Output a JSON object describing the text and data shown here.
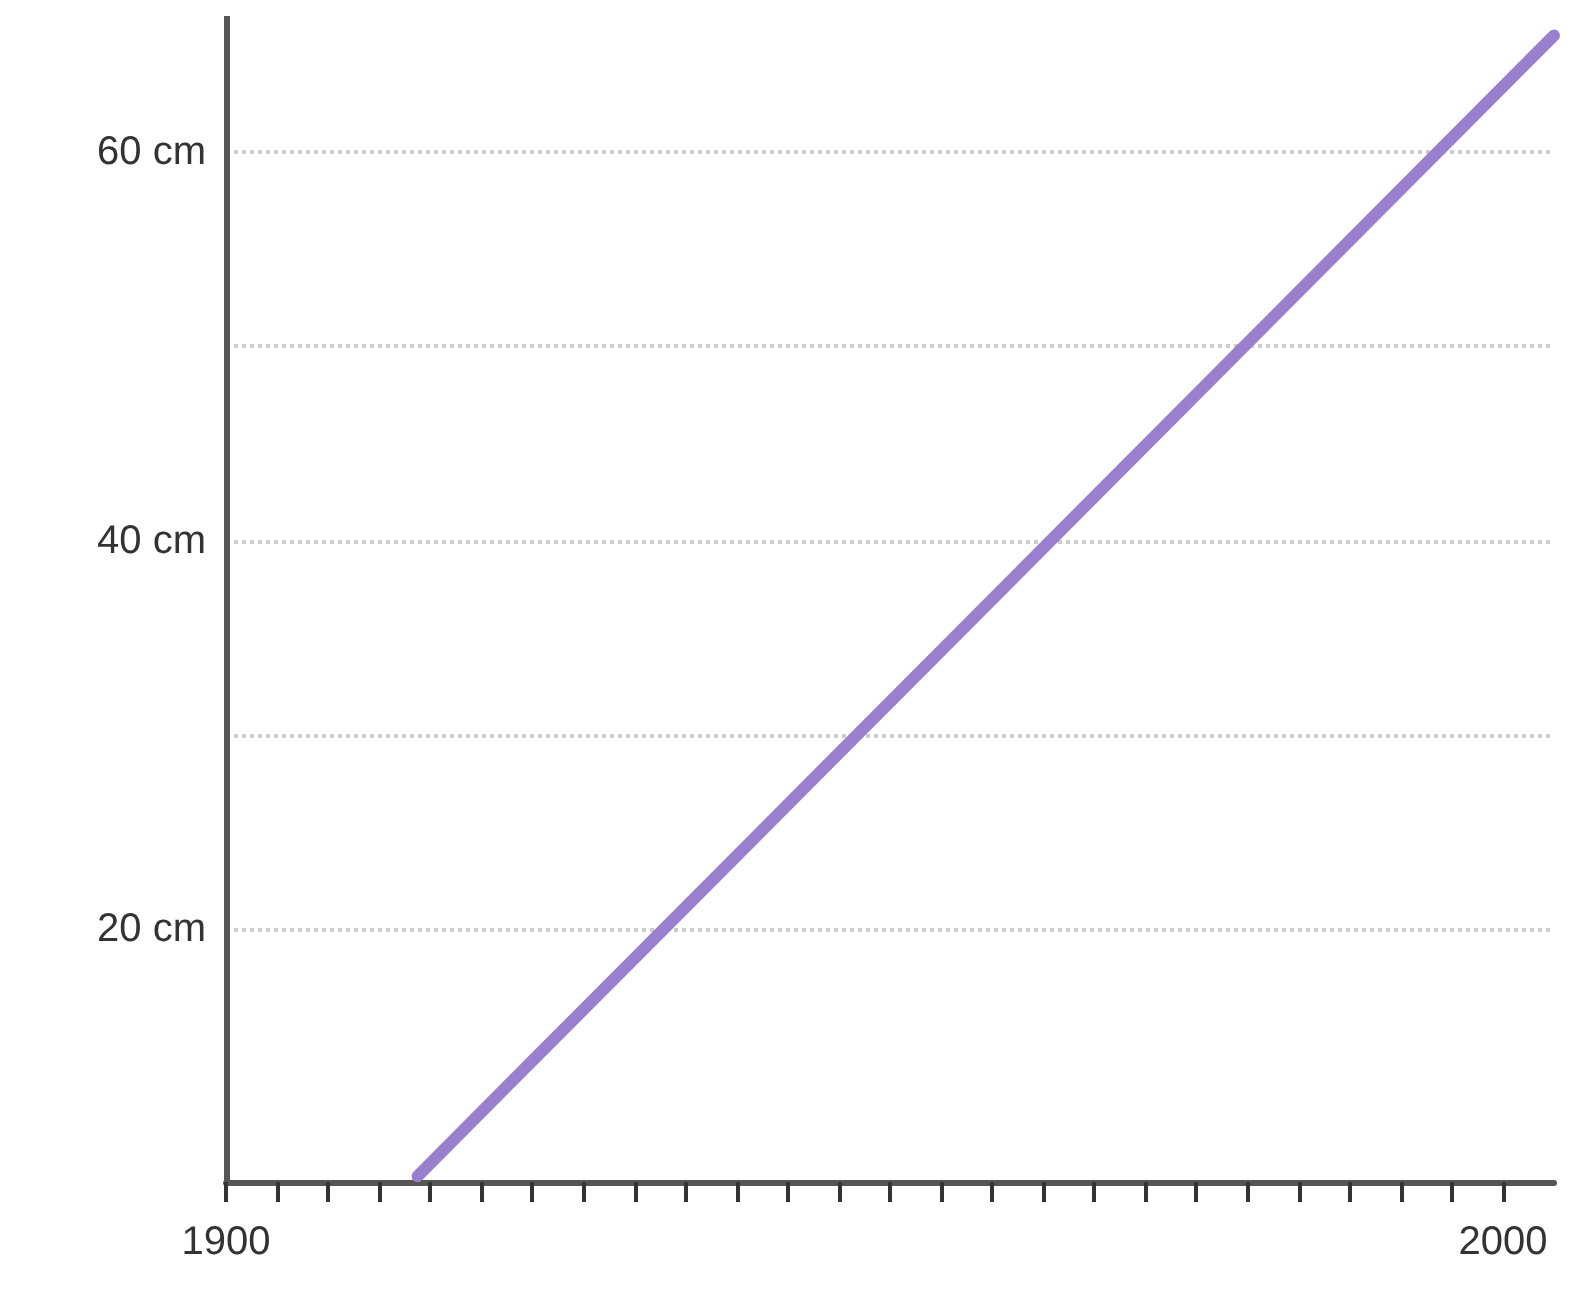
{
  "chart_data": {
    "type": "line",
    "x": [
      1915,
      2004
    ],
    "series": [
      {
        "color": "#9b7fcf",
        "values": [
          7.3,
          66
        ]
      }
    ],
    "xlim": [
      1900,
      2004
    ],
    "xticks": [
      {
        "value": 1900,
        "label": "1900"
      },
      {
        "value": 1904,
        "label": null
      },
      {
        "value": 1908,
        "label": null
      },
      {
        "value": 1912,
        "label": null
      },
      {
        "value": 1916,
        "label": null
      },
      {
        "value": 1920,
        "label": null
      },
      {
        "value": 1924,
        "label": null
      },
      {
        "value": 1928,
        "label": null
      },
      {
        "value": 1932,
        "label": null
      },
      {
        "value": 1936,
        "label": null
      },
      {
        "value": 1940,
        "label": null
      },
      {
        "value": 1944,
        "label": null
      },
      {
        "value": 1948,
        "label": null
      },
      {
        "value": 1952,
        "label": null
      },
      {
        "value": 1956,
        "label": null
      },
      {
        "value": 1960,
        "label": null
      },
      {
        "value": 1964,
        "label": null
      },
      {
        "value": 1968,
        "label": null
      },
      {
        "value": 1972,
        "label": null
      },
      {
        "value": 1976,
        "label": null
      },
      {
        "value": 1980,
        "label": null
      },
      {
        "value": 1984,
        "label": null
      },
      {
        "value": 1988,
        "label": null
      },
      {
        "value": 1992,
        "label": null
      },
      {
        "value": 1996,
        "label": null
      },
      {
        "value": 2000,
        "label": "2000"
      }
    ],
    "ylim": [
      7,
      67
    ],
    "yticks": [
      {
        "value": 20,
        "label": "20 cm"
      },
      {
        "value": 30,
        "label": null
      },
      {
        "value": 40,
        "label": "40 cm"
      },
      {
        "value": 50,
        "label": null
      },
      {
        "value": 60,
        "label": "60 cm"
      }
    ],
    "grid": "y",
    "marker": "none",
    "line_style": "solid"
  }
}
